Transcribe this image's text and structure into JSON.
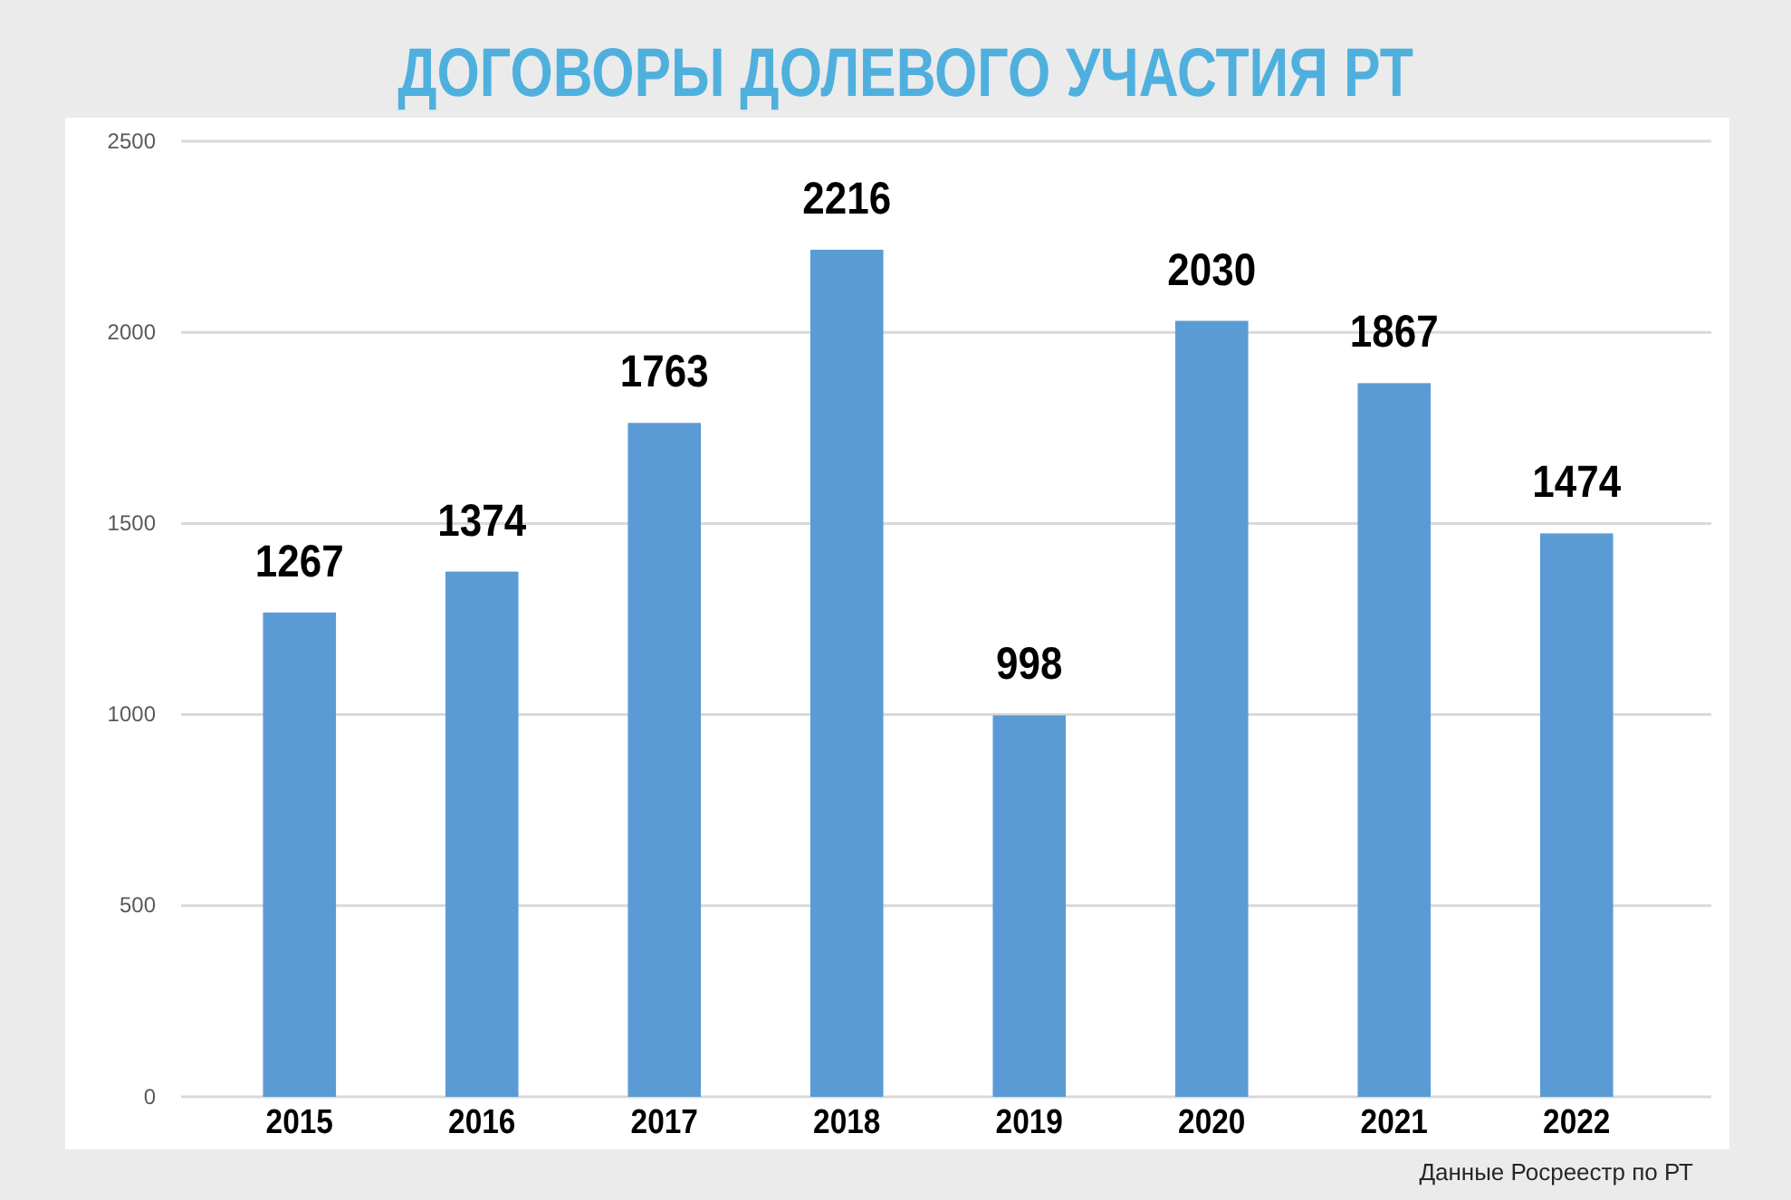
{
  "chart_data": {
    "type": "bar",
    "title": "ДОГОВОРЫ ДОЛЕВОГО УЧАСТИЯ РТ",
    "categories": [
      "2015",
      "2016",
      "2017",
      "2018",
      "2019",
      "2020",
      "2021",
      "2022"
    ],
    "values": [
      1267,
      1374,
      1763,
      2216,
      998,
      2030,
      1867,
      1474
    ],
    "color": "#5b9bd5",
    "ylim": [
      0,
      2500
    ],
    "yticks": [
      0,
      500,
      1000,
      1500,
      2000,
      2500
    ],
    "grid": "y",
    "data_labels": true,
    "annotations": [
      "Данные Росреестр по РТ"
    ]
  }
}
